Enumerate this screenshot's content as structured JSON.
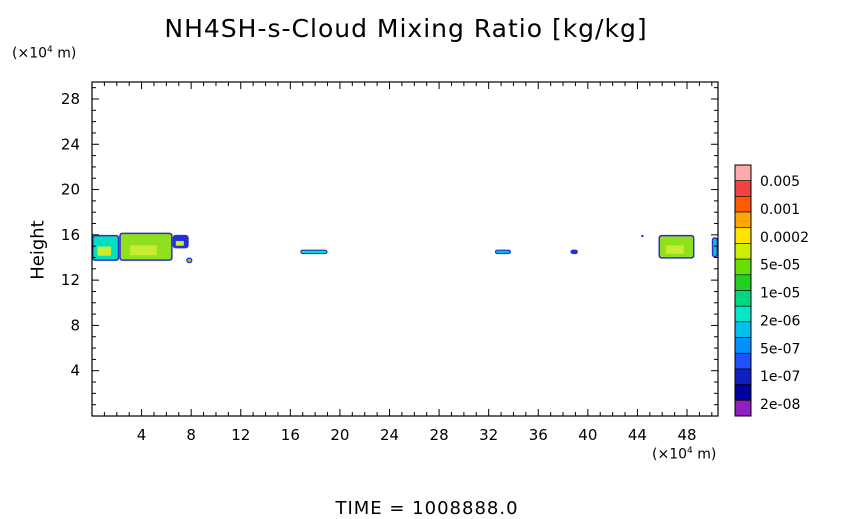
{
  "header": {
    "title": "NH4SH-s-Cloud Mixing Ratio [kg/kg]",
    "y_unit_prefix": "(×10",
    "y_unit_exp": "4",
    "y_unit_suffix": " m)",
    "x_unit_prefix": "(×10",
    "x_unit_exp": "4",
    "x_unit_suffix": " m)",
    "y_axis_label": "Height"
  },
  "footer": {
    "time_label": "TIME  =  1008888.0"
  },
  "chart_data": {
    "type": "heatmap",
    "title": "NH4SH-s-Cloud Mixing Ratio [kg/kg]",
    "ylabel": "Height",
    "xlim": [
      0,
      50.5
    ],
    "ylim": [
      0,
      29.5
    ],
    "x_ticks": [
      4,
      8,
      12,
      16,
      20,
      24,
      28,
      32,
      36,
      40,
      44,
      48
    ],
    "y_ticks": [
      4,
      8,
      12,
      16,
      20,
      24,
      28
    ],
    "colorbar": {
      "labels": [
        "0.005",
        "0.001",
        "0.0002",
        "5e-05",
        "1e-05",
        "2e-06",
        "5e-07",
        "1e-07",
        "2e-08"
      ],
      "colors": [
        "#ffaaaa",
        "#ee4444",
        "#ff5a00",
        "#ffa600",
        "#ffe400",
        "#c8f000",
        "#66e000",
        "#22d022",
        "#00d880",
        "#00e8c8",
        "#00c0f0",
        "#0090ff",
        "#2050ff",
        "#1020c0",
        "#0000a0",
        "#9020c0"
      ]
    },
    "cloud_regions": [
      {
        "x": [
          0,
          2.2
        ],
        "y": [
          13.7,
          16.0
        ],
        "level": "2e-06"
      },
      {
        "x": [
          2.2,
          6.5
        ],
        "y": [
          13.7,
          16.2
        ],
        "level": "5e-05"
      },
      {
        "x": [
          6.5,
          7.8
        ],
        "y": [
          14.8,
          16.0
        ],
        "level": "1e-07"
      },
      {
        "x": [
          7.6,
          8.1
        ],
        "y": [
          13.5,
          14.0
        ],
        "level": "5e-05"
      },
      {
        "x": [
          16.8,
          19.0
        ],
        "y": [
          14.3,
          14.7
        ],
        "level": "2e-06"
      },
      {
        "x": [
          32.5,
          33.8
        ],
        "y": [
          14.3,
          14.7
        ],
        "level": "5e-07"
      },
      {
        "x": [
          38.6,
          39.2
        ],
        "y": [
          14.3,
          14.7
        ],
        "level": "1e-07"
      },
      {
        "x": [
          44.3,
          44.5
        ],
        "y": [
          15.8,
          16.0
        ],
        "level": "1e-07"
      },
      {
        "x": [
          45.7,
          48.6
        ],
        "y": [
          13.9,
          16.0
        ],
        "level": "5e-05"
      },
      {
        "x": [
          50.0,
          50.5
        ],
        "y": [
          14.0,
          15.8
        ],
        "level": "1e-06"
      }
    ]
  }
}
